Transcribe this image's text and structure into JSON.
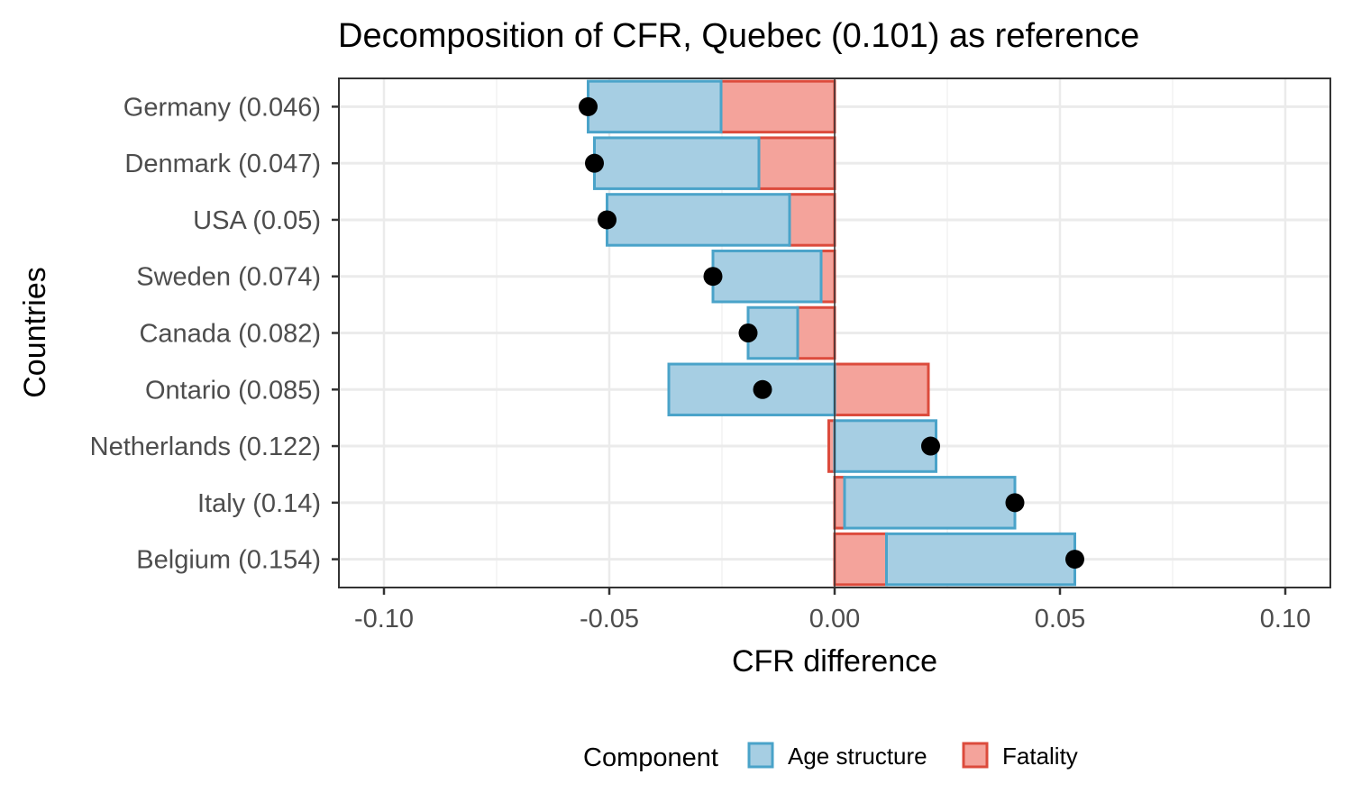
{
  "chart_data": {
    "type": "bar",
    "subtype": "stacked-horizontal-diverging",
    "title": "Decomposition of CFR, Quebec (0.101) as reference",
    "xlabel": "CFR difference",
    "ylabel": "Countries",
    "xlim": [
      -0.11,
      0.11
    ],
    "xticks": [
      -0.1,
      -0.05,
      0.0,
      0.05,
      0.1
    ],
    "xtick_labels": [
      "-0.10",
      "-0.05",
      "0.00",
      "0.05",
      "0.10"
    ],
    "grid": true,
    "legend": {
      "title": "Component",
      "position": "bottom",
      "entries": [
        {
          "label": "Age structure",
          "fill": "#a6cee3",
          "stroke": "#4aa3c9"
        },
        {
          "label": "Fatality",
          "fill": "#f4a39b",
          "stroke": "#dc4b3c"
        }
      ]
    },
    "categories": [
      "Germany (0.046)",
      "Denmark (0.047)",
      "USA (0.05)",
      "Sweden (0.074)",
      "Canada (0.082)",
      "Ontario (0.085)",
      "Netherlands (0.122)",
      "Italy (0.14)",
      "Belgium (0.154)"
    ],
    "series": [
      {
        "name": "Age structure",
        "values": [
          -0.0295,
          -0.0365,
          -0.0405,
          -0.024,
          -0.011,
          -0.0368,
          0.0225,
          0.0378,
          0.0418
        ]
      },
      {
        "name": "Fatality",
        "values": [
          -0.0252,
          -0.0168,
          -0.01,
          -0.003,
          -0.0082,
          0.0208,
          -0.0013,
          0.0022,
          0.0115
        ]
      }
    ],
    "totals": [
      -0.0547,
      -0.0533,
      -0.0505,
      -0.027,
      -0.0192,
      -0.016,
      0.0213,
      0.04,
      0.0533
    ]
  }
}
